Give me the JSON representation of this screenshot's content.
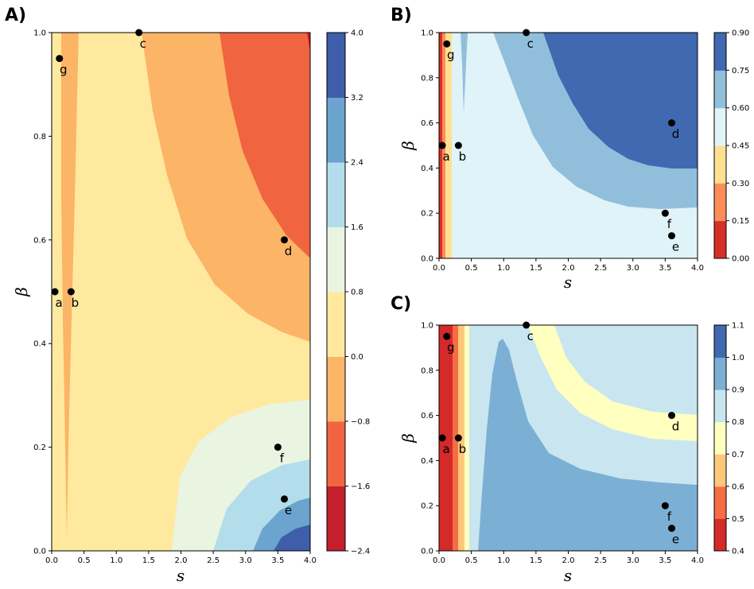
{
  "figure_labels": [
    "A)",
    "B)",
    "C)"
  ],
  "points": [
    {
      "name": "a",
      "s": 0.05,
      "beta": 0.5
    },
    {
      "name": "b",
      "s": 0.3,
      "beta": 0.5
    },
    {
      "name": "c",
      "s": 1.35,
      "beta": 1.0
    },
    {
      "name": "d",
      "s": 3.6,
      "beta": 0.6
    },
    {
      "name": "e",
      "s": 3.6,
      "beta": 0.1
    },
    {
      "name": "f",
      "s": 3.5,
      "beta": 0.2
    },
    {
      "name": "g",
      "s": 0.12,
      "beta": 0.95
    }
  ],
  "chart_data": [
    {
      "panel": "A)",
      "type": "heatmap",
      "xlabel": "s",
      "ylabel": "β",
      "xlim": [
        0,
        4
      ],
      "ylim": [
        0,
        1
      ],
      "xticks": [
        "0.0",
        "0.5",
        "1.0",
        "1.5",
        "2.0",
        "2.5",
        "3.0",
        "3.5",
        "4.0"
      ],
      "yticks": [
        "0.0",
        "0.2",
        "0.4",
        "0.6",
        "0.8",
        "1.0"
      ],
      "colorbar_levels": [
        -2.4,
        -1.6,
        -0.8,
        0.0,
        0.8,
        1.6,
        2.4,
        3.2,
        4.0
      ],
      "colorbar_ticks": [
        "−2.4",
        "−1.6",
        "−0.8",
        "0.0",
        "0.8",
        "1.6",
        "2.4",
        "3.2",
        "4.0"
      ],
      "colors": [
        "#c41f2b",
        "#f06440",
        "#fcb466",
        "#fee99f",
        "#e9f5e1",
        "#b3ddea",
        "#6ba4ce",
        "#3e5ea9"
      ]
    },
    {
      "panel": "B)",
      "type": "heatmap",
      "xlabel": "s",
      "ylabel": "β",
      "xlim": [
        0,
        4
      ],
      "ylim": [
        0,
        1
      ],
      "xticks": [
        "0.0",
        "0.5",
        "1.0",
        "1.5",
        "2.0",
        "2.5",
        "3.0",
        "3.5",
        "4.0"
      ],
      "yticks": [
        "0.0",
        "0.2",
        "0.4",
        "0.6",
        "0.8",
        "1.0"
      ],
      "colorbar_levels": [
        0.0,
        0.15,
        0.3,
        0.45,
        0.6,
        0.75,
        0.9
      ],
      "colorbar_ticks": [
        "0.00",
        "0.15",
        "0.30",
        "0.45",
        "0.60",
        "0.75",
        "0.90"
      ],
      "colors": [
        "#d73027",
        "#fc8d59",
        "#fee090",
        "#e0f3f8",
        "#91bfdb",
        "#4169b1"
      ]
    },
    {
      "panel": "C)",
      "type": "heatmap",
      "xlabel": "s",
      "ylabel": "β",
      "xlim": [
        0,
        4
      ],
      "ylim": [
        0,
        1
      ],
      "xticks": [
        "0.0",
        "0.5",
        "1.0",
        "1.5",
        "2.0",
        "2.5",
        "3.0",
        "3.5",
        "4.0"
      ],
      "yticks": [
        "0.0",
        "0.2",
        "0.4",
        "0.6",
        "0.8",
        "1.0"
      ],
      "colorbar_levels": [
        0.4,
        0.5,
        0.6,
        0.7,
        0.8,
        0.9,
        1.0,
        1.1
      ],
      "colorbar_ticks": [
        "0.4",
        "0.5",
        "0.6",
        "0.7",
        "0.8",
        "0.9",
        "1.0",
        "1.1"
      ],
      "colors": [
        "#d42a2a",
        "#f46d43",
        "#fdc87a",
        "#ffffbf",
        "#c9e6f0",
        "#7bb0d4",
        "#4169b1"
      ]
    }
  ]
}
